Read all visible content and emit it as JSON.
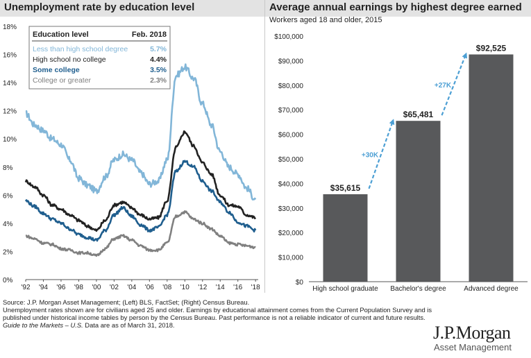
{
  "left_chart": {
    "title": "Unemployment rate by education level",
    "legend": {
      "header_label": "Education level",
      "header_date": "Feb. 2018",
      "rows": [
        {
          "name": "Less than high school degree",
          "value": "5.7%",
          "color": "#82b6d8"
        },
        {
          "name": "High school no college",
          "value": "4.4%",
          "color": "#222222"
        },
        {
          "name": "Some college",
          "value": "3.5%",
          "color": "#1f5e8e"
        },
        {
          "name": "College or greater",
          "value": "2.3%",
          "color": "#808080"
        }
      ]
    }
  },
  "right_chart": {
    "title": "Average annual earnings by highest degree earned",
    "subtitle": "Workers aged 18 and older, 2015"
  },
  "chart_data": [
    {
      "type": "line",
      "title": "Unemployment rate by education level",
      "x_ticks": [
        "'92",
        "'94",
        "'96",
        "'98",
        "'00",
        "'02",
        "'04",
        "'06",
        "'08",
        "'10",
        "'12",
        "'14",
        "'16",
        "'18"
      ],
      "xlim": [
        1992,
        2018.3
      ],
      "y_ticks": [
        "0%",
        "2%",
        "4%",
        "6%",
        "8%",
        "10%",
        "12%",
        "14%",
        "16%",
        "18%"
      ],
      "ylim": [
        0,
        18
      ],
      "series": [
        {
          "name": "Less than high school degree",
          "color": "#82b6d8",
          "points": [
            [
              1992,
              11.8
            ],
            [
              1993,
              11.0
            ],
            [
              1994,
              10.6
            ],
            [
              1995,
              10.0
            ],
            [
              1996,
              9.6
            ],
            [
              1997,
              8.5
            ],
            [
              1998,
              7.2
            ],
            [
              1999,
              6.7
            ],
            [
              2000,
              6.3
            ],
            [
              2001,
              7.3
            ],
            [
              2002,
              8.5
            ],
            [
              2003,
              8.9
            ],
            [
              2004,
              8.5
            ],
            [
              2005,
              7.6
            ],
            [
              2006,
              6.8
            ],
            [
              2007,
              7.0
            ],
            [
              2008,
              8.5
            ],
            [
              2009,
              14.5
            ],
            [
              2010,
              15.1
            ],
            [
              2011,
              14.3
            ],
            [
              2012,
              12.5
            ],
            [
              2013,
              11.0
            ],
            [
              2014,
              9.1
            ],
            [
              2015,
              8.0
            ],
            [
              2016,
              7.5
            ],
            [
              2017,
              6.5
            ],
            [
              2018,
              5.7
            ]
          ]
        },
        {
          "name": "High school no college",
          "color": "#222222",
          "points": [
            [
              1992,
              7.0
            ],
            [
              1993,
              6.6
            ],
            [
              1994,
              6.0
            ],
            [
              1995,
              5.3
            ],
            [
              1996,
              5.0
            ],
            [
              1997,
              4.6
            ],
            [
              1998,
              4.2
            ],
            [
              1999,
              3.8
            ],
            [
              2000,
              3.5
            ],
            [
              2001,
              4.2
            ],
            [
              2002,
              5.3
            ],
            [
              2003,
              5.5
            ],
            [
              2004,
              5.1
            ],
            [
              2005,
              4.6
            ],
            [
              2006,
              4.3
            ],
            [
              2007,
              4.4
            ],
            [
              2008,
              5.6
            ],
            [
              2009,
              9.4
            ],
            [
              2010,
              10.5
            ],
            [
              2011,
              9.5
            ],
            [
              2012,
              8.3
            ],
            [
              2013,
              7.5
            ],
            [
              2014,
              6.0
            ],
            [
              2015,
              5.3
            ],
            [
              2016,
              5.2
            ],
            [
              2017,
              4.6
            ],
            [
              2018,
              4.4
            ]
          ]
        },
        {
          "name": "Some college",
          "color": "#1f5e8e",
          "points": [
            [
              1992,
              5.6
            ],
            [
              1993,
              5.2
            ],
            [
              1994,
              4.7
            ],
            [
              1995,
              4.3
            ],
            [
              1996,
              4.0
            ],
            [
              1997,
              3.6
            ],
            [
              1998,
              3.2
            ],
            [
              1999,
              3.0
            ],
            [
              2000,
              2.8
            ],
            [
              2001,
              3.5
            ],
            [
              2002,
              4.6
            ],
            [
              2003,
              5.1
            ],
            [
              2004,
              4.5
            ],
            [
              2005,
              3.9
            ],
            [
              2006,
              3.5
            ],
            [
              2007,
              3.7
            ],
            [
              2008,
              4.6
            ],
            [
              2009,
              7.7
            ],
            [
              2010,
              8.4
            ],
            [
              2011,
              8.0
            ],
            [
              2012,
              7.0
            ],
            [
              2013,
              6.3
            ],
            [
              2014,
              5.5
            ],
            [
              2015,
              4.8
            ],
            [
              2016,
              4.1
            ],
            [
              2017,
              3.8
            ],
            [
              2018,
              3.5
            ]
          ]
        },
        {
          "name": "College or greater",
          "color": "#808080",
          "points": [
            [
              1992,
              3.1
            ],
            [
              1993,
              2.9
            ],
            [
              1994,
              2.6
            ],
            [
              1995,
              2.5
            ],
            [
              1996,
              2.2
            ],
            [
              1997,
              2.1
            ],
            [
              1998,
              1.9
            ],
            [
              1999,
              1.9
            ],
            [
              2000,
              1.7
            ],
            [
              2001,
              2.2
            ],
            [
              2002,
              2.9
            ],
            [
              2003,
              3.1
            ],
            [
              2004,
              2.8
            ],
            [
              2005,
              2.4
            ],
            [
              2006,
              2.1
            ],
            [
              2007,
              2.1
            ],
            [
              2008,
              2.6
            ],
            [
              2009,
              4.5
            ],
            [
              2010,
              4.8
            ],
            [
              2011,
              4.3
            ],
            [
              2012,
              4.0
            ],
            [
              2013,
              3.6
            ],
            [
              2014,
              3.1
            ],
            [
              2015,
              2.6
            ],
            [
              2016,
              2.5
            ],
            [
              2017,
              2.4
            ],
            [
              2018,
              2.3
            ]
          ]
        }
      ]
    },
    {
      "type": "bar",
      "title": "Average annual earnings by highest degree earned",
      "subtitle": "Workers aged 18 and older, 2015",
      "categories": [
        "High school graduate",
        "Bachelor's degree",
        "Advanced degree"
      ],
      "values": [
        35615,
        65481,
        92525
      ],
      "value_labels": [
        "$35,615",
        "$65,481",
        "$92,525"
      ],
      "growth_labels": [
        "+30K",
        "+27K"
      ],
      "bar_color": "#58595b",
      "arrow_color": "#4c9fd4",
      "y_ticks": [
        "$0",
        "$10,000",
        "$20,000",
        "$30,000",
        "$40,000",
        "$50,000",
        "$60,000",
        "$70,000",
        "$80,000",
        "$90,000",
        "$100,000"
      ],
      "ylim": [
        0,
        100000
      ]
    }
  ],
  "footnotes": {
    "source": "Source: J.P. Morgan Asset Management; (Left) BLS, FactSet; (Right) Census Bureau.",
    "line2": "Unemployment rates shown are for civilians aged 25 and older. Earnings by educational attainment comes from the Current Population Survey and is",
    "line3": "published under historical income tables by person by the Census Bureau. Past performance is not a reliable indicator of current and future results.",
    "guide_title": "Guide to the Markets – U.S.",
    "guide_rest": " Data are as of March 31, 2018."
  },
  "logo": {
    "name": "J.P.Morgan",
    "sub": "Asset Management"
  }
}
